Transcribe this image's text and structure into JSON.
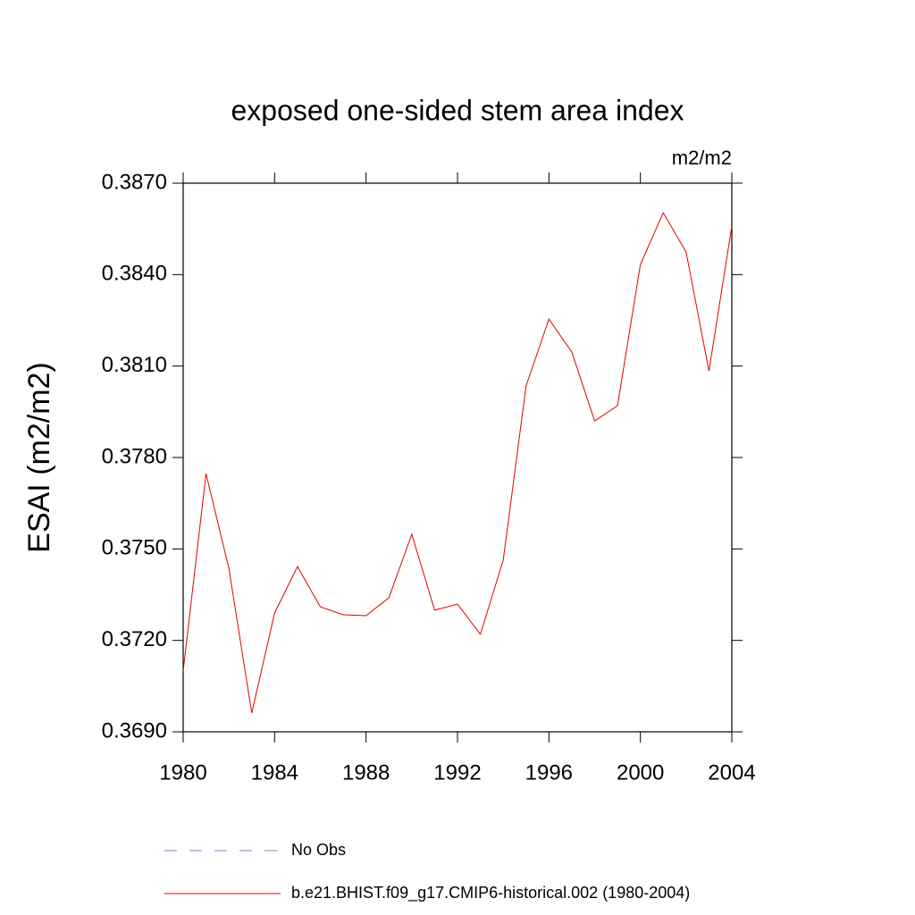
{
  "chart_data": {
    "type": "line",
    "title": "exposed one-sided stem area index",
    "units": "m2/m2",
    "ylabel": "ESAI  (m2/m2)",
    "x": [
      1980,
      1981,
      1982,
      1983,
      1984,
      1985,
      1986,
      1987,
      1988,
      1989,
      1990,
      1991,
      1992,
      1993,
      1994,
      1995,
      1996,
      1997,
      1998,
      1999,
      2000,
      2001,
      2002,
      2003,
      2004
    ],
    "series": [
      {
        "name": "No Obs",
        "color": "#8080c0",
        "dashed": true,
        "values": [
          null,
          null,
          null,
          null,
          null,
          null,
          null,
          null,
          null,
          null,
          null,
          null,
          null,
          null,
          null,
          null,
          null,
          null,
          null,
          null,
          null,
          null,
          null,
          null,
          null
        ]
      },
      {
        "name": "b.e21.BHIST.f09_g17.CMIP6-historical.002 (1980-2004)",
        "color": "#e00000",
        "dashed": false,
        "values": [
          0.371,
          0.37747,
          0.37436,
          0.36962,
          0.3729,
          0.37442,
          0.3731,
          0.37284,
          0.37281,
          0.3734,
          0.37548,
          0.37299,
          0.37319,
          0.3722,
          0.37463,
          0.38035,
          0.38254,
          0.38146,
          0.3792,
          0.3797,
          0.38433,
          0.38603,
          0.38474,
          0.38084,
          0.38559
        ]
      }
    ],
    "xlim": [
      1980,
      2004
    ],
    "xticks": [
      1980,
      1984,
      1988,
      1992,
      1996,
      2000,
      2004
    ],
    "ylim": [
      0.369,
      0.387
    ],
    "yticks": [
      {
        "value": 0.369,
        "label": "0.3690"
      },
      {
        "value": 0.372,
        "label": "0.3720"
      },
      {
        "value": 0.375,
        "label": "0.3750"
      },
      {
        "value": 0.378,
        "label": "0.3780"
      },
      {
        "value": 0.381,
        "label": "0.3810"
      },
      {
        "value": 0.384,
        "label": "0.3840"
      },
      {
        "value": 0.387,
        "label": "0.3870"
      }
    ],
    "grid": false
  }
}
